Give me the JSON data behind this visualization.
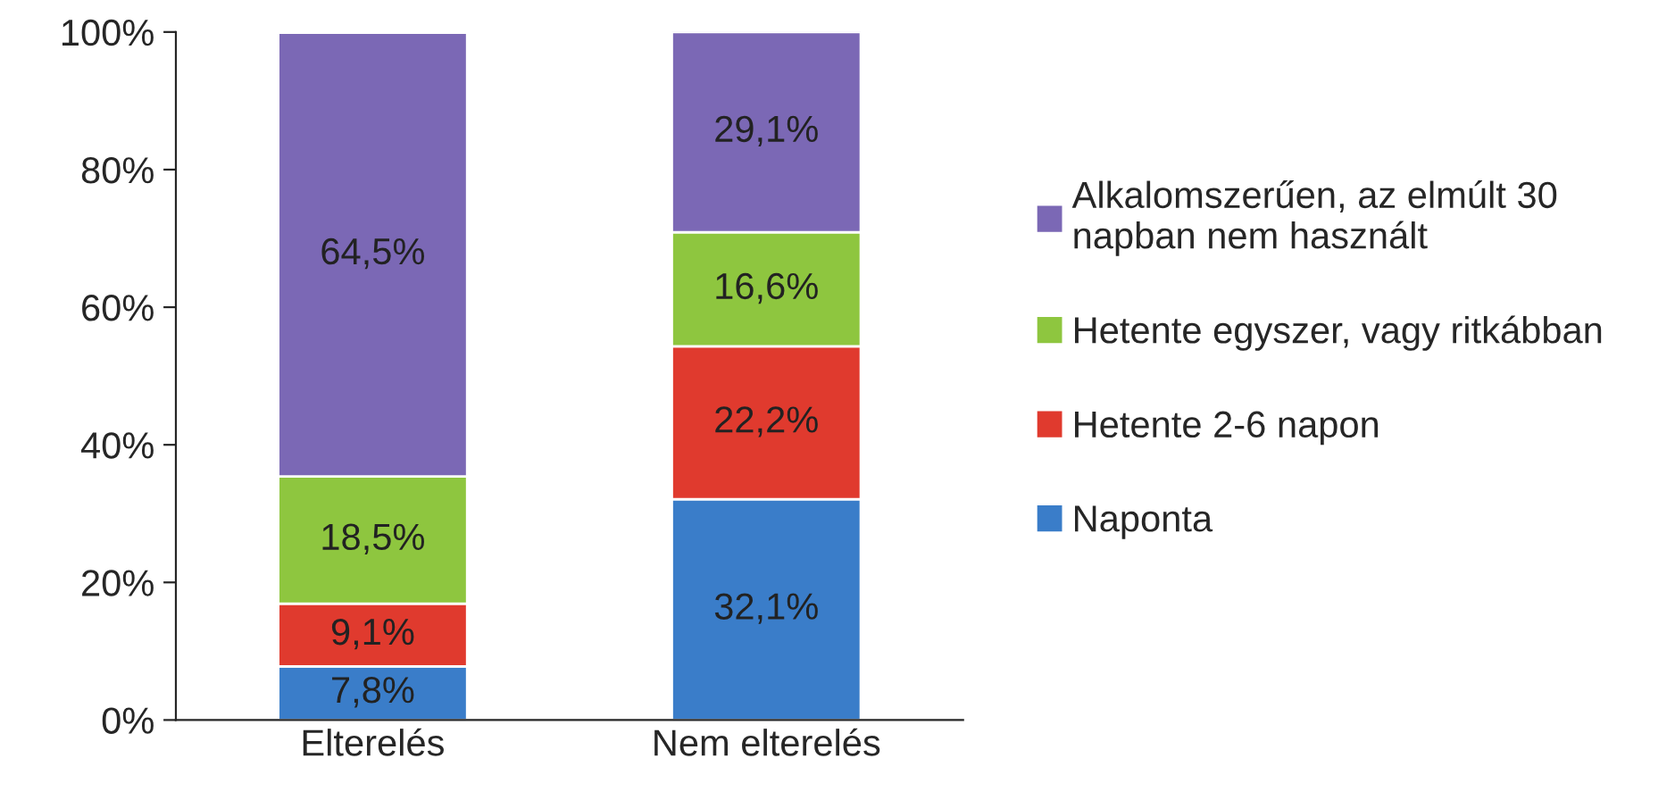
{
  "chart_data": {
    "type": "bar",
    "stacked": true,
    "categories": [
      "Elterelés",
      "Nem elterelés"
    ],
    "series": [
      {
        "name": "Naponta",
        "color": "#3a7dc9",
        "values": [
          7.8,
          32.1
        ],
        "value_labels": [
          "7,8%",
          "32,1%"
        ]
      },
      {
        "name": "Hetente 2-6 napon",
        "color": "#e03a2e",
        "values": [
          9.1,
          22.2
        ],
        "value_labels": [
          "9,1%",
          "22,2%"
        ]
      },
      {
        "name": "Hetente egyszer, vagy ritkábban",
        "color": "#8ec63f",
        "values": [
          18.5,
          16.6
        ],
        "value_labels": [
          "18,5%",
          "16,6%"
        ]
      },
      {
        "name": "Alkalomszerűen, az elmúlt 30 napban nem használt",
        "color": "#7b68b5",
        "values": [
          64.5,
          29.1
        ],
        "value_labels": [
          "64,5%",
          "29,1%"
        ]
      }
    ],
    "ylim": [
      0,
      100
    ],
    "yticks": [
      {
        "value": 0,
        "label": "0%"
      },
      {
        "value": 20,
        "label": "20%"
      },
      {
        "value": 40,
        "label": "40%"
      },
      {
        "value": 60,
        "label": "60%"
      },
      {
        "value": 80,
        "label": "80%"
      },
      {
        "value": 100,
        "label": "100%"
      }
    ],
    "grid": false,
    "legend": "right"
  }
}
